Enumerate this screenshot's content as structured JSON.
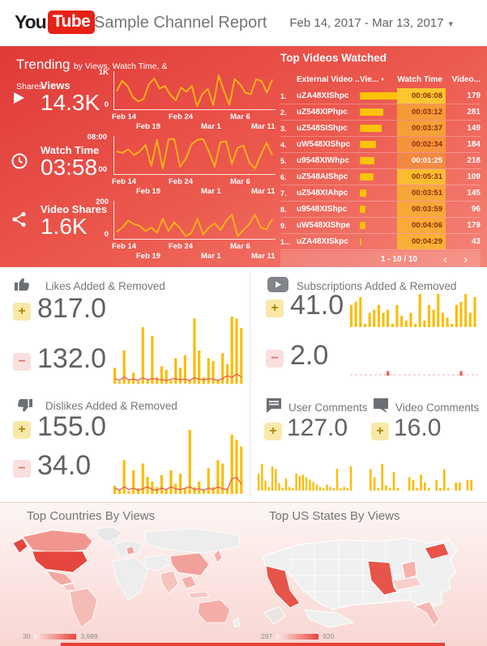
{
  "colors": {
    "brand_red": "#e62117",
    "hero_red_top": "#e03a38",
    "hero_red_bottom": "#f58478",
    "bar_yellow": "#fbbc04",
    "spark_orange": "#fcaf1b",
    "line_red": "#e8594f",
    "removed_tick_red": "#e06055",
    "map_max_red": "#e5463e",
    "text_gray": "#757575"
  },
  "icons": {
    "caret_down": "▾",
    "sort_desc": "▼",
    "prev": "‹",
    "next": "›",
    "plus": "+",
    "minus": "−"
  },
  "header": {
    "logo_you": "You",
    "logo_tube": "Tube",
    "title": "Sample Channel Report",
    "date_range": "Feb 14, 2017 - Mar 13, 2017"
  },
  "trending": {
    "title": "Trending",
    "subtitle": "by Views, Watch Time, & Shares",
    "x_ticks": [
      "Feb 14",
      "Feb 19",
      "Feb 24",
      "Mar 1",
      "Mar 6",
      "Mar 11"
    ],
    "metrics": [
      {
        "label": "Views",
        "value": "14.3K",
        "y_max": "1K",
        "y_min": "0"
      },
      {
        "label": "Watch Time",
        "value": "03:58",
        "y_max": "08:00",
        "y_min": "00"
      },
      {
        "label": "Video Shares",
        "value": "1.6K",
        "y_max": "200",
        "y_min": "0"
      }
    ]
  },
  "top_videos": {
    "title": "Top Videos Watched",
    "columns": [
      "External Video ...",
      "Vie...",
      "Watch Time",
      "Video..."
    ],
    "rows": [
      {
        "rank": "1.",
        "id": "uZA48XIShpc",
        "views_bar": 50,
        "watch_time": "00:06:08",
        "videos": "179",
        "heat": 1.0
      },
      {
        "rank": "2.",
        "id": "uZ548XIPhpc",
        "views_bar": 29,
        "watch_time": "00:03:12",
        "videos": "281",
        "heat": 0.52
      },
      {
        "rank": "3.",
        "id": "uZ548SIShpc",
        "views_bar": 27,
        "watch_time": "00:03:37",
        "videos": "149",
        "heat": 0.59
      },
      {
        "rank": "4.",
        "id": "uW548XIShpc",
        "views_bar": 20,
        "watch_time": "00:02:34",
        "videos": "184",
        "heat": 0.42
      },
      {
        "rank": "5.",
        "id": "u9548XIWhpc",
        "views_bar": 18,
        "watch_time": "00:01:25",
        "videos": "218",
        "heat": 0.23
      },
      {
        "rank": "6.",
        "id": "uZ548AIShpc",
        "views_bar": 17,
        "watch_time": "00:05:31",
        "videos": "109",
        "heat": 0.9
      },
      {
        "rank": "7.",
        "id": "uZ548XIAhpc",
        "views_bar": 8,
        "watch_time": "00:03:51",
        "videos": "145",
        "heat": 0.63
      },
      {
        "rank": "8.",
        "id": "u9548XIShpc",
        "views_bar": 7,
        "watch_time": "00:03:59",
        "videos": "96",
        "heat": 0.65
      },
      {
        "rank": "9.",
        "id": "uW548XIShpe",
        "views_bar": 7,
        "watch_time": "00:04:06",
        "videos": "179",
        "heat": 0.67
      },
      {
        "rank": "1...",
        "id": "uZA48XISkpc",
        "views_bar": 2,
        "watch_time": "00:04:29",
        "videos": "43",
        "heat": 0.73
      }
    ],
    "pagination": "1 - 10 / 10"
  },
  "stats": {
    "likes": {
      "title": "Likes Added & Removed",
      "added": "817.0",
      "removed": "132.0"
    },
    "subscriptions": {
      "title": "Subscriptions Added & Removed",
      "added": "41.0",
      "removed": "2.0"
    },
    "dislikes": {
      "title": "Dislikes Added & Removed",
      "added": "155.0",
      "removed": "34.0"
    },
    "user_comments": {
      "title": "User Comments",
      "added": "127.0"
    },
    "video_comments": {
      "title": "Video Comments",
      "added": "16.0"
    }
  },
  "maps": {
    "countries": {
      "title": "Top Countries By Views",
      "legend_min": "30",
      "legend_max": "3,989"
    },
    "states": {
      "title": "Top US States By Views",
      "legend_min": "297",
      "legend_max": "920"
    }
  },
  "chart_data": {
    "trend_views": {
      "type": "line",
      "ylim": [
        0,
        1000
      ],
      "values": [
        500,
        790,
        650,
        330,
        200,
        270,
        700,
        860,
        570,
        650,
        390,
        230,
        600,
        480,
        650,
        60,
        420,
        560,
        90,
        950,
        500,
        100,
        850,
        690,
        450,
        410,
        840,
        790,
        450,
        830
      ]
    },
    "trend_watch_time": {
      "type": "line",
      "ylim": [
        0,
        480
      ],
      "values": [
        300,
        280,
        330,
        250,
        300,
        390,
        100,
        460,
        60,
        470,
        470,
        90,
        200,
        400,
        460,
        470,
        300,
        90,
        430,
        440,
        130,
        350,
        380,
        150,
        60,
        250,
        420,
        250
      ]
    },
    "trend_shares": {
      "type": "line",
      "ylim": [
        0,
        200
      ],
      "values": [
        35,
        60,
        100,
        80,
        70,
        40,
        60,
        30,
        110,
        40,
        90,
        55,
        10,
        30,
        110,
        20,
        60,
        85,
        45,
        100,
        135,
        10,
        45,
        80,
        135,
        60,
        50,
        110
      ]
    },
    "likes": {
      "type": "bar+line",
      "added": [
        55,
        8,
        115,
        12,
        38,
        8,
        195,
        12,
        165,
        22,
        60,
        48,
        12,
        88,
        55,
        98,
        12,
        225,
        115,
        22,
        88,
        78,
        12,
        105,
        68,
        232,
        225,
        192
      ],
      "removed": [
        12,
        6,
        18,
        8,
        10,
        6,
        15,
        8,
        12,
        10,
        8,
        6,
        10,
        12,
        8,
        10,
        6,
        15,
        10,
        8,
        12,
        10,
        6,
        12,
        22,
        16,
        28,
        18
      ]
    },
    "subscriptions": {
      "type": "bar",
      "added": [
        28,
        32,
        38,
        4,
        18,
        22,
        28,
        18,
        22,
        4,
        28,
        14,
        8,
        18,
        4,
        42,
        8,
        28,
        22,
        42,
        18,
        12,
        4,
        28,
        32,
        42,
        18,
        38
      ],
      "removed": [
        0,
        0,
        0,
        0,
        0,
        0,
        0,
        0,
        1,
        0,
        0,
        0,
        0,
        0,
        0,
        0,
        0,
        0,
        0,
        0,
        0,
        0,
        0,
        0,
        1,
        0,
        0,
        0
      ]
    },
    "dislikes": {
      "type": "bar+line",
      "added": [
        12,
        6,
        50,
        4,
        35,
        8,
        45,
        25,
        18,
        10,
        28,
        6,
        35,
        15,
        30,
        8,
        95,
        10,
        18,
        6,
        38,
        10,
        50,
        45,
        8,
        88,
        80,
        70
      ],
      "removed": [
        6,
        3,
        8,
        4,
        6,
        3,
        5,
        8,
        4,
        3,
        6,
        4,
        8,
        5,
        4,
        6,
        8,
        4,
        5,
        3,
        6,
        4,
        8,
        5,
        4,
        20,
        22,
        12
      ]
    },
    "user_comments": {
      "type": "bar",
      "values": [
        14,
        22,
        8,
        3,
        20,
        18,
        6,
        2,
        10,
        3,
        2,
        14,
        12,
        13,
        11,
        9,
        7,
        5,
        3,
        2,
        5,
        3,
        2,
        18,
        2,
        3,
        2,
        20
      ]
    },
    "video_comments": {
      "type": "bar",
      "values": [
        16,
        10,
        2,
        20,
        4,
        2,
        14,
        2,
        0,
        0,
        10,
        8,
        2,
        12,
        6,
        2,
        0,
        8,
        2,
        16,
        2,
        0,
        6,
        6,
        0,
        8,
        8,
        0
      ]
    }
  }
}
